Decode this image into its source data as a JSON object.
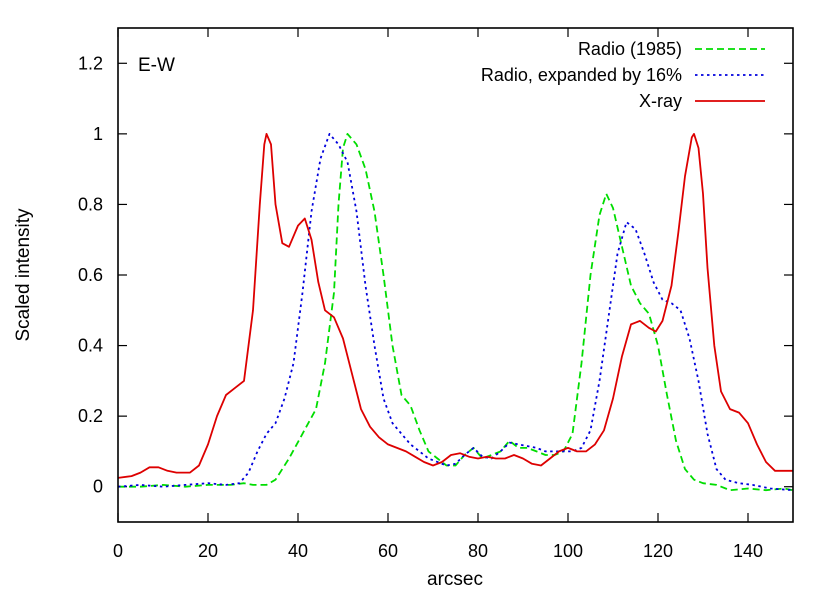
{
  "chart_data": {
    "type": "line",
    "title": "",
    "xlabel": "arcsec",
    "ylabel": "Scaled intensity",
    "xlim": [
      0,
      150
    ],
    "ylim": [
      -0.1,
      1.3
    ],
    "xticks": [
      0,
      20,
      40,
      60,
      80,
      100,
      120,
      140
    ],
    "yticks": [
      0,
      0.2,
      0.4,
      0.6,
      0.8,
      1,
      1.2
    ],
    "ytick_labels": [
      "0",
      "0.2",
      "0.4",
      "0.6",
      "0.8",
      "1",
      "1.2"
    ],
    "grid": false,
    "legend_position": "top-right",
    "annotation": "E-W",
    "series": [
      {
        "name": "Radio (1985)",
        "color": "#00dd00",
        "dash": "dashed",
        "points": [
          [
            0,
            0
          ],
          [
            5,
            0
          ],
          [
            10,
            0.005
          ],
          [
            15,
            0
          ],
          [
            20,
            0.005
          ],
          [
            25,
            0.005
          ],
          [
            28,
            0.01
          ],
          [
            30,
            0.005
          ],
          [
            33,
            0.005
          ],
          [
            35,
            0.02
          ],
          [
            38,
            0.08
          ],
          [
            41,
            0.15
          ],
          [
            44,
            0.22
          ],
          [
            46,
            0.35
          ],
          [
            48,
            0.55
          ],
          [
            49,
            0.8
          ],
          [
            50,
            0.96
          ],
          [
            51,
            1
          ],
          [
            53,
            0.97
          ],
          [
            55,
            0.9
          ],
          [
            57,
            0.78
          ],
          [
            59,
            0.6
          ],
          [
            61,
            0.4
          ],
          [
            63,
            0.26
          ],
          [
            65,
            0.23
          ],
          [
            67,
            0.16
          ],
          [
            69,
            0.1
          ],
          [
            71,
            0.08
          ],
          [
            73,
            0.06
          ],
          [
            75,
            0.06
          ],
          [
            77,
            0.09
          ],
          [
            79,
            0.11
          ],
          [
            81,
            0.08
          ],
          [
            83,
            0.09
          ],
          [
            85,
            0.1
          ],
          [
            87,
            0.13
          ],
          [
            89,
            0.11
          ],
          [
            91,
            0.11
          ],
          [
            93,
            0.1
          ],
          [
            95,
            0.09
          ],
          [
            97,
            0.09
          ],
          [
            99,
            0.1
          ],
          [
            101,
            0.15
          ],
          [
            103,
            0.35
          ],
          [
            105,
            0.6
          ],
          [
            107,
            0.77
          ],
          [
            108.5,
            0.83
          ],
          [
            110,
            0.79
          ],
          [
            112,
            0.68
          ],
          [
            114,
            0.57
          ],
          [
            116,
            0.52
          ],
          [
            118,
            0.49
          ],
          [
            120,
            0.4
          ],
          [
            122,
            0.26
          ],
          [
            124,
            0.13
          ],
          [
            126,
            0.05
          ],
          [
            128,
            0.02
          ],
          [
            130,
            0.01
          ],
          [
            133,
            0.005
          ],
          [
            136,
            -0.01
          ],
          [
            140,
            -0.005
          ],
          [
            144,
            -0.01
          ],
          [
            148,
            -0.005
          ],
          [
            150,
            -0.01
          ]
        ]
      },
      {
        "name": "Radio, expanded by 16%",
        "color": "#0000dd",
        "dash": "dotted",
        "points": [
          [
            0,
            0
          ],
          [
            5,
            0.005
          ],
          [
            10,
            0
          ],
          [
            15,
            0.005
          ],
          [
            20,
            0.01
          ],
          [
            24,
            0.005
          ],
          [
            27,
            0.01
          ],
          [
            29,
            0.04
          ],
          [
            31,
            0.1
          ],
          [
            33,
            0.15
          ],
          [
            35,
            0.18
          ],
          [
            37,
            0.25
          ],
          [
            39,
            0.35
          ],
          [
            41,
            0.55
          ],
          [
            43,
            0.78
          ],
          [
            45,
            0.93
          ],
          [
            47,
            1
          ],
          [
            49,
            0.97
          ],
          [
            51,
            0.92
          ],
          [
            53,
            0.78
          ],
          [
            55,
            0.57
          ],
          [
            57,
            0.4
          ],
          [
            59,
            0.25
          ],
          [
            61,
            0.18
          ],
          [
            63,
            0.15
          ],
          [
            65,
            0.12
          ],
          [
            67,
            0.1
          ],
          [
            69,
            0.08
          ],
          [
            71,
            0.07
          ],
          [
            73,
            0.06
          ],
          [
            75,
            0.065
          ],
          [
            77,
            0.09
          ],
          [
            79,
            0.11
          ],
          [
            81,
            0.085
          ],
          [
            83,
            0.08
          ],
          [
            85,
            0.1
          ],
          [
            87,
            0.125
          ],
          [
            89,
            0.12
          ],
          [
            91,
            0.115
          ],
          [
            93,
            0.11
          ],
          [
            95,
            0.1
          ],
          [
            97,
            0.1
          ],
          [
            99,
            0.1
          ],
          [
            101,
            0.1
          ],
          [
            103,
            0.11
          ],
          [
            105,
            0.16
          ],
          [
            107,
            0.3
          ],
          [
            109,
            0.48
          ],
          [
            111,
            0.66
          ],
          [
            113,
            0.75
          ],
          [
            115,
            0.73
          ],
          [
            117,
            0.66
          ],
          [
            119,
            0.58
          ],
          [
            121,
            0.53
          ],
          [
            123,
            0.52
          ],
          [
            125,
            0.5
          ],
          [
            127,
            0.42
          ],
          [
            129,
            0.3
          ],
          [
            131,
            0.15
          ],
          [
            133,
            0.05
          ],
          [
            135,
            0.02
          ],
          [
            138,
            0.01
          ],
          [
            141,
            0.005
          ],
          [
            145,
            -0.005
          ],
          [
            150,
            -0.01
          ]
        ]
      },
      {
        "name": "X-ray",
        "color": "#dd0000",
        "dash": "solid",
        "points": [
          [
            0,
            0.025
          ],
          [
            3,
            0.03
          ],
          [
            5,
            0.04
          ],
          [
            7,
            0.055
          ],
          [
            9,
            0.055
          ],
          [
            11,
            0.045
          ],
          [
            13,
            0.04
          ],
          [
            16,
            0.04
          ],
          [
            18,
            0.06
          ],
          [
            20,
            0.12
          ],
          [
            22,
            0.2
          ],
          [
            24,
            0.26
          ],
          [
            26,
            0.28
          ],
          [
            28,
            0.3
          ],
          [
            30,
            0.5
          ],
          [
            31.5,
            0.8
          ],
          [
            32.5,
            0.97
          ],
          [
            33,
            1
          ],
          [
            34,
            0.97
          ],
          [
            35,
            0.8
          ],
          [
            36.5,
            0.69
          ],
          [
            38,
            0.68
          ],
          [
            40,
            0.74
          ],
          [
            41.5,
            0.76
          ],
          [
            43,
            0.7
          ],
          [
            44.5,
            0.58
          ],
          [
            46,
            0.5
          ],
          [
            48,
            0.48
          ],
          [
            50,
            0.42
          ],
          [
            52,
            0.32
          ],
          [
            54,
            0.22
          ],
          [
            56,
            0.17
          ],
          [
            58,
            0.14
          ],
          [
            60,
            0.12
          ],
          [
            62,
            0.11
          ],
          [
            64,
            0.1
          ],
          [
            66,
            0.085
          ],
          [
            68,
            0.07
          ],
          [
            70,
            0.06
          ],
          [
            72,
            0.07
          ],
          [
            74,
            0.09
          ],
          [
            76,
            0.095
          ],
          [
            78,
            0.085
          ],
          [
            80,
            0.08
          ],
          [
            82,
            0.085
          ],
          [
            84,
            0.08
          ],
          [
            86,
            0.08
          ],
          [
            88,
            0.09
          ],
          [
            90,
            0.08
          ],
          [
            92,
            0.065
          ],
          [
            94,
            0.06
          ],
          [
            96,
            0.08
          ],
          [
            98,
            0.1
          ],
          [
            100,
            0.11
          ],
          [
            102,
            0.1
          ],
          [
            104,
            0.1
          ],
          [
            106,
            0.12
          ],
          [
            108,
            0.16
          ],
          [
            110,
            0.25
          ],
          [
            112,
            0.37
          ],
          [
            114,
            0.46
          ],
          [
            116,
            0.47
          ],
          [
            118,
            0.45
          ],
          [
            119.5,
            0.44
          ],
          [
            121,
            0.47
          ],
          [
            123,
            0.57
          ],
          [
            124.5,
            0.72
          ],
          [
            126,
            0.88
          ],
          [
            127.5,
            0.99
          ],
          [
            128,
            1
          ],
          [
            129,
            0.96
          ],
          [
            130,
            0.83
          ],
          [
            131,
            0.62
          ],
          [
            132.5,
            0.4
          ],
          [
            134,
            0.27
          ],
          [
            136,
            0.22
          ],
          [
            138,
            0.21
          ],
          [
            140,
            0.18
          ],
          [
            142,
            0.12
          ],
          [
            144,
            0.07
          ],
          [
            146,
            0.045
          ],
          [
            148,
            0.045
          ],
          [
            150,
            0.045
          ]
        ]
      }
    ]
  }
}
